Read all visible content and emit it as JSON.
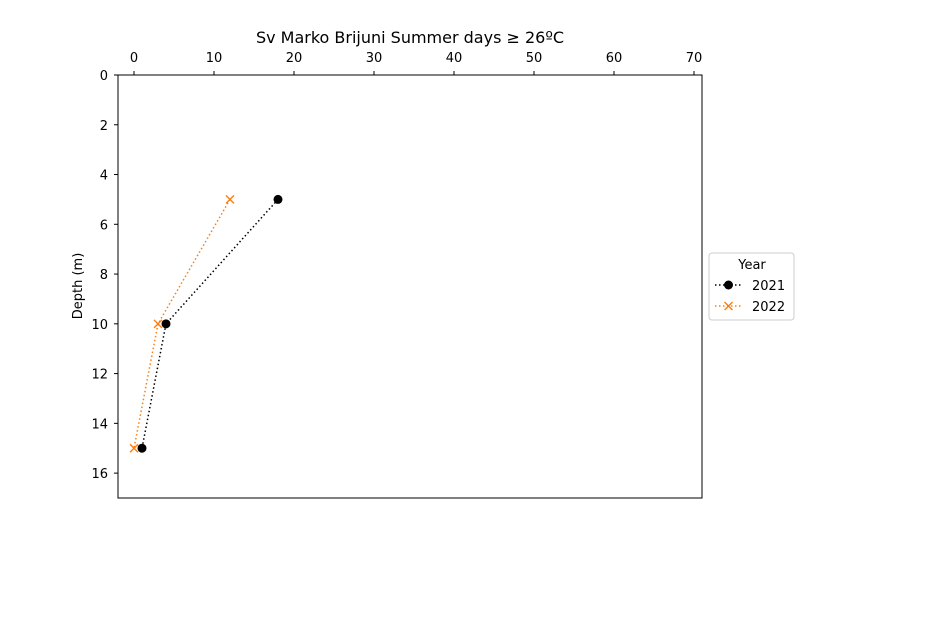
{
  "chart_data": {
    "type": "line",
    "title": "Sv Marko Brijuni Summer days ≥ 26ºC",
    "xlabel": "",
    "ylabel": "Depth (m)",
    "x_axis_position": "top",
    "y_axis_inverted": true,
    "xlim": [
      -2,
      71
    ],
    "ylim": [
      0,
      17
    ],
    "xticks": [
      0,
      10,
      20,
      30,
      40,
      50,
      60,
      70
    ],
    "yticks": [
      0,
      2,
      4,
      6,
      8,
      10,
      12,
      14,
      16
    ],
    "grid": false,
    "legend": {
      "title": "Year",
      "placement": "outside-right"
    },
    "series": [
      {
        "name": "2021",
        "color": "#000000",
        "marker": "circle",
        "linestyle": "dotted",
        "points": [
          {
            "x": 18,
            "y": 5
          },
          {
            "x": 4,
            "y": 10
          },
          {
            "x": 1,
            "y": 15
          }
        ]
      },
      {
        "name": "2022",
        "color": "#ff7f0e",
        "marker": "x",
        "linestyle": "dotted",
        "points": [
          {
            "x": 12,
            "y": 5
          },
          {
            "x": 3,
            "y": 10
          },
          {
            "x": 0,
            "y": 15
          }
        ]
      }
    ]
  }
}
